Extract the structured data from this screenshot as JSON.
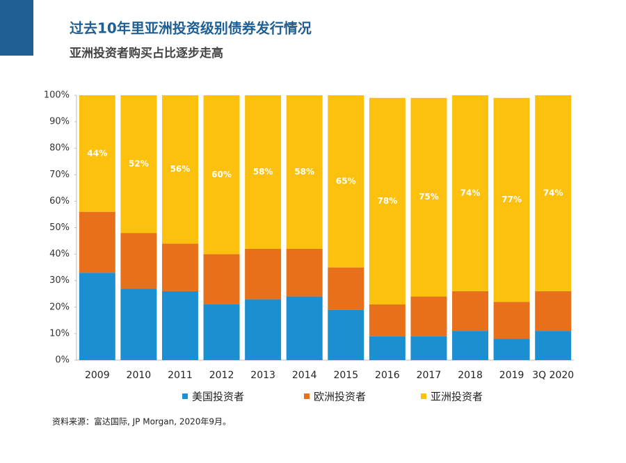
{
  "chart_data": {
    "type": "stacked_bar",
    "title": "过去10年里亚洲投资级别债券发行情况",
    "subtitle": "亚洲投资者购买占比逐步走高",
    "source": "资料来源：富达国际, JP Morgan, 2020年9月。",
    "categories": [
      "2009",
      "2010",
      "2011",
      "2012",
      "2013",
      "2014",
      "2015",
      "2016",
      "2017",
      "2018",
      "2019",
      "3Q 2020"
    ],
    "series": [
      {
        "name": "美国投资者",
        "color": "#1b8fcf",
        "values": [
          33,
          27,
          26,
          21,
          23,
          24,
          19,
          9,
          9,
          11,
          8,
          11
        ]
      },
      {
        "name": "欧洲投资者",
        "color": "#e8701a",
        "values": [
          23,
          21,
          18,
          19,
          19,
          18,
          16,
          12,
          15,
          15,
          14,
          15
        ]
      },
      {
        "name": "亚洲投资者",
        "color": "#fcc10f",
        "values": [
          44,
          52,
          56,
          60,
          58,
          58,
          65,
          78,
          75,
          74,
          77,
          74
        ],
        "value_labels": [
          "44%",
          "52%",
          "56%",
          "60%",
          "58%",
          "58%",
          "65%",
          "78%",
          "75%",
          "74%",
          "77%",
          "74%"
        ]
      }
    ],
    "ylim": [
      0,
      100
    ],
    "yticks": [
      {
        "value": 0,
        "label": "0%"
      },
      {
        "value": 10,
        "label": "10%"
      },
      {
        "value": 20,
        "label": "20%"
      },
      {
        "value": 30,
        "label": "30%"
      },
      {
        "value": 40,
        "label": "40%"
      },
      {
        "value": 50,
        "label": "50%"
      },
      {
        "value": 60,
        "label": "60%"
      },
      {
        "value": 70,
        "label": "70%"
      },
      {
        "value": 80,
        "label": "80%"
      },
      {
        "value": 90,
        "label": "90%"
      },
      {
        "value": 100,
        "label": "100%"
      }
    ],
    "legend": "bottom"
  }
}
